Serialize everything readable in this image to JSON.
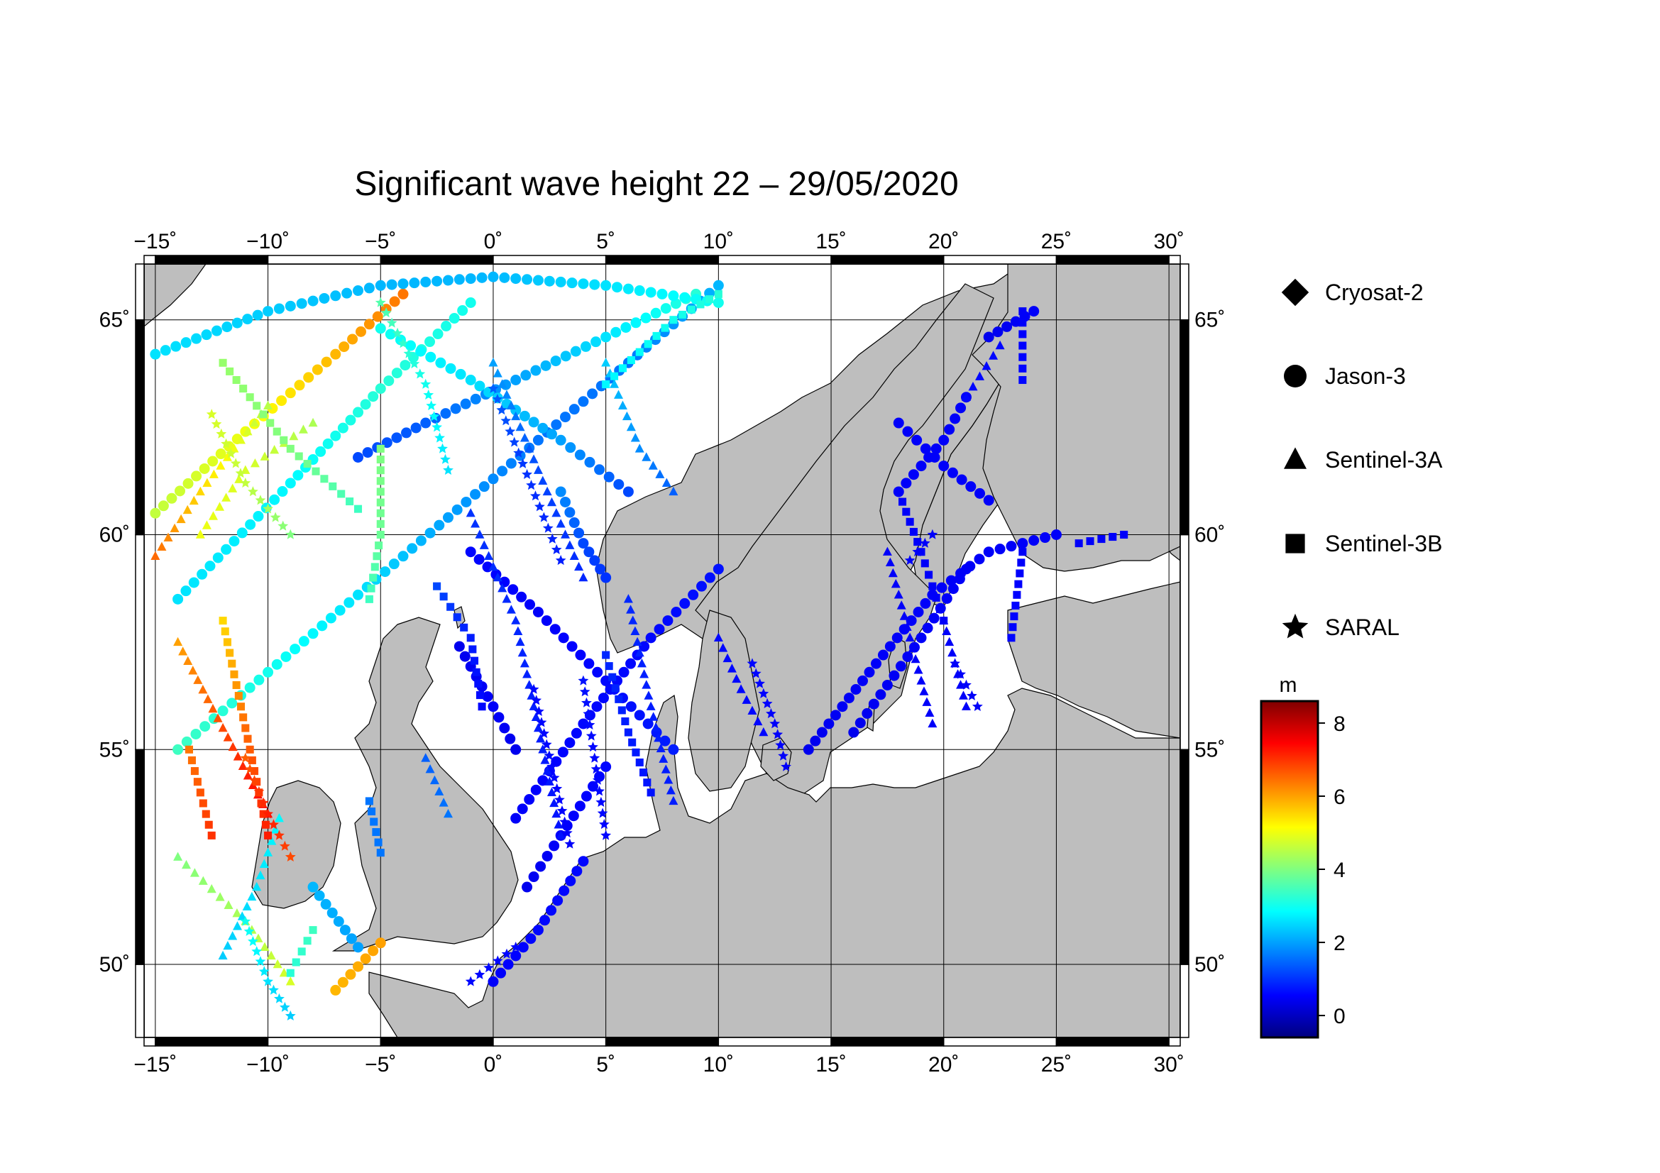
{
  "title": "Significant wave height 22 – 29/05/2020",
  "axes": {
    "lon_ticks": [
      {
        "value": -15,
        "label": "−15˚"
      },
      {
        "value": -10,
        "label": "−10˚"
      },
      {
        "value": -5,
        "label": "−5˚"
      },
      {
        "value": 0,
        "label": "0˚"
      },
      {
        "value": 5,
        "label": "5˚"
      },
      {
        "value": 10,
        "label": "10˚"
      },
      {
        "value": 15,
        "label": "15˚"
      },
      {
        "value": 20,
        "label": "20˚"
      },
      {
        "value": 25,
        "label": "25˚"
      },
      {
        "value": 30,
        "label": "30˚"
      }
    ],
    "lat_ticks": [
      {
        "value": 50,
        "label": "50˚"
      },
      {
        "value": 55,
        "label": "55˚"
      },
      {
        "value": 60,
        "label": "60˚"
      },
      {
        "value": 65,
        "label": "65˚"
      }
    ],
    "lon_range": [
      -15.5,
      30.5
    ],
    "lat_range": [
      48.3,
      66.3
    ]
  },
  "legend": [
    {
      "name": "Cryosat-2",
      "marker": "diamond"
    },
    {
      "name": "Jason-3",
      "marker": "circle"
    },
    {
      "name": "Sentinel-3A",
      "marker": "triangle"
    },
    {
      "name": "Sentinel-3B",
      "marker": "square"
    },
    {
      "name": "SARAL",
      "marker": "star"
    }
  ],
  "colorbar": {
    "unit": "m",
    "range": [
      -0.6,
      8.6
    ],
    "ticks": [
      {
        "value": 0,
        "label": "0"
      },
      {
        "value": 2,
        "label": "2"
      },
      {
        "value": 4,
        "label": "4"
      },
      {
        "value": 6,
        "label": "6"
      },
      {
        "value": 8,
        "label": "8"
      }
    ],
    "colors": [
      "#00007f",
      "#0000ff",
      "#0080ff",
      "#00ffff",
      "#80ff80",
      "#ffff00",
      "#ff8000",
      "#ff0000",
      "#7f0000"
    ]
  },
  "colors": {
    "land": "#bebebe",
    "sea": "#ffffff",
    "frame": "#000000"
  },
  "tracks": [
    {
      "satellite": "Jason-3",
      "marker": "circle",
      "points": [
        [
          -14,
          55
        ],
        [
          -10,
          56.8
        ],
        [
          -6,
          58.6
        ],
        [
          -2,
          60.4
        ],
        [
          2,
          62.2
        ],
        [
          6,
          64
        ],
        [
          10,
          65.8
        ]
      ],
      "swh": [
        3.4,
        3.0,
        2.6,
        2.0,
        1.6,
        1.6,
        2.2
      ]
    },
    {
      "satellite": "Jason-3",
      "marker": "circle",
      "points": [
        [
          -15,
          60.5
        ],
        [
          -11,
          62.4
        ],
        [
          -7,
          64.2
        ],
        [
          -4,
          65.6
        ]
      ],
      "swh": [
        4.6,
        5.0,
        5.8,
        6.4
      ]
    },
    {
      "satellite": "Jason-3",
      "marker": "circle",
      "points": [
        [
          -14,
          58.5
        ],
        [
          -9,
          61.2
        ],
        [
          -5,
          63.4
        ],
        [
          -1,
          65.4
        ]
      ],
      "swh": [
        2.6,
        2.8,
        3.2,
        3.0
      ]
    },
    {
      "satellite": "Jason-3",
      "marker": "circle",
      "points": [
        [
          -6,
          61.8
        ],
        [
          -3,
          62.6
        ],
        [
          1,
          63.6
        ],
        [
          5,
          64.6
        ],
        [
          9,
          65.6
        ]
      ],
      "swh": [
        1.2,
        1.4,
        2.0,
        2.6,
        3.2
      ]
    },
    {
      "satellite": "Jason-3",
      "marker": "circle",
      "points": [
        [
          -5,
          64.8
        ],
        [
          -1,
          63.6
        ],
        [
          3,
          62.2
        ],
        [
          6,
          61
        ]
      ],
      "swh": [
        3.0,
        2.6,
        2.0,
        1.2
      ]
    },
    {
      "satellite": "Jason-3",
      "marker": "circle",
      "points": [
        [
          -15,
          64.2
        ],
        [
          -10,
          65.2
        ],
        [
          -5,
          65.8
        ],
        [
          0,
          66
        ],
        [
          5,
          65.8
        ],
        [
          10,
          65.4
        ]
      ],
      "swh": [
        2.6,
        2.4,
        2.2,
        2.2,
        2.6,
        3.0
      ]
    },
    {
      "satellite": "Jason-3",
      "marker": "circle",
      "points": [
        [
          -1,
          59.6
        ],
        [
          2,
          58.2
        ],
        [
          5,
          56.6
        ],
        [
          8,
          55
        ]
      ],
      "swh": [
        0.6,
        0.5,
        0.6,
        0.8
      ]
    },
    {
      "satellite": "Jason-3",
      "marker": "circle",
      "points": [
        [
          -1.5,
          57.4
        ],
        [
          0,
          56
        ],
        [
          1,
          55
        ]
      ],
      "swh": [
        0.4,
        0.5,
        0.4
      ]
    },
    {
      "satellite": "Jason-3",
      "marker": "circle",
      "points": [
        [
          1,
          53.4
        ],
        [
          4,
          55.6
        ],
        [
          7,
          57.6
        ],
        [
          10,
          59.2
        ]
      ],
      "swh": [
        0.5,
        0.6,
        0.6,
        0.7
      ]
    },
    {
      "satellite": "Jason-3",
      "marker": "circle",
      "points": [
        [
          1.5,
          51.8
        ],
        [
          3,
          53
        ],
        [
          5,
          54.6
        ]
      ],
      "swh": [
        0.4,
        0.5,
        0.6
      ]
    },
    {
      "satellite": "Jason-3",
      "marker": "circle",
      "points": [
        [
          0,
          49.6
        ],
        [
          2,
          50.8
        ],
        [
          4,
          52.4
        ]
      ],
      "swh": [
        0.5,
        0.6,
        0.6
      ]
    },
    {
      "satellite": "Jason-3",
      "marker": "circle",
      "points": [
        [
          3,
          61
        ],
        [
          4,
          59.8
        ],
        [
          5,
          59
        ]
      ],
      "swh": [
        1.8,
        1.2,
        1.0
      ]
    },
    {
      "satellite": "Jason-3",
      "marker": "circle",
      "points": [
        [
          -8,
          51.8
        ],
        [
          -6,
          50.4
        ]
      ],
      "swh": [
        2.2,
        2.0
      ]
    },
    {
      "satellite": "Jason-3",
      "marker": "circle",
      "points": [
        [
          -7,
          49.4
        ],
        [
          -5,
          50.5
        ]
      ],
      "swh": [
        5.8,
        6.0
      ]
    },
    {
      "satellite": "Jason-3",
      "marker": "circle",
      "points": [
        [
          14,
          55
        ],
        [
          17,
          57
        ],
        [
          19.5,
          58.6
        ],
        [
          22,
          59.6
        ],
        [
          25,
          60
        ]
      ],
      "swh": [
        0.4,
        0.5,
        0.5,
        0.5,
        0.5
      ]
    },
    {
      "satellite": "Jason-3",
      "marker": "circle",
      "points": [
        [
          16,
          55.4
        ],
        [
          19,
          57.6
        ],
        [
          21,
          59.2
        ]
      ],
      "swh": [
        0.4,
        0.5,
        0.5
      ]
    },
    {
      "satellite": "Jason-3",
      "marker": "circle",
      "points": [
        [
          18,
          62.6
        ],
        [
          20,
          61.6
        ],
        [
          22,
          60.8
        ]
      ],
      "swh": [
        0.5,
        0.5,
        0.5
      ]
    },
    {
      "satellite": "Jason-3",
      "marker": "circle",
      "points": [
        [
          18,
          61
        ],
        [
          20,
          62.2
        ],
        [
          21,
          63.2
        ]
      ],
      "swh": [
        0.5,
        0.5,
        0.5
      ]
    },
    {
      "satellite": "Jason-3",
      "marker": "circle",
      "points": [
        [
          22,
          64.6
        ],
        [
          24,
          65.2
        ]
      ],
      "swh": [
        0.4,
        0.5
      ]
    },
    {
      "satellite": "Sentinel-3A",
      "marker": "triangle",
      "points": [
        [
          -15,
          59.5
        ],
        [
          -13,
          61
        ],
        [
          -10,
          63
        ]
      ],
      "swh": [
        6.5,
        5.5,
        4.5
      ]
    },
    {
      "satellite": "Sentinel-3A",
      "marker": "triangle",
      "points": [
        [
          -14,
          57.5
        ],
        [
          -12,
          55.5
        ],
        [
          -10,
          53.5
        ]
      ],
      "swh": [
        6.0,
        6.8,
        7.5
      ]
    },
    {
      "satellite": "Sentinel-3A",
      "marker": "triangle",
      "points": [
        [
          -14,
          52.5
        ],
        [
          -11,
          51
        ],
        [
          -9,
          49.6
        ]
      ],
      "swh": [
        4.0,
        4.4,
        4.8
      ]
    },
    {
      "satellite": "Sentinel-3A",
      "marker": "triangle",
      "points": [
        [
          -12,
          50.2
        ],
        [
          -10.5,
          51.8
        ],
        [
          -9.5,
          53.4
        ]
      ],
      "swh": [
        2.4,
        2.6,
        2.8
      ]
    },
    {
      "satellite": "Sentinel-3A",
      "marker": "triangle",
      "points": [
        [
          -13,
          60
        ],
        [
          -11,
          61.5
        ],
        [
          -8,
          62.6
        ]
      ],
      "swh": [
        5.0,
        4.8,
        4.4
      ]
    },
    {
      "satellite": "Sentinel-3A",
      "marker": "triangle",
      "points": [
        [
          0,
          64
        ],
        [
          2,
          61.5
        ],
        [
          4,
          59
        ]
      ],
      "swh": [
        2.0,
        1.2,
        0.9
      ]
    },
    {
      "satellite": "Sentinel-3A",
      "marker": "triangle",
      "points": [
        [
          -1,
          60.5
        ],
        [
          1,
          58
        ],
        [
          2,
          55.5
        ],
        [
          3,
          53
        ]
      ],
      "swh": [
        1.0,
        0.9,
        0.8,
        0.7
      ]
    },
    {
      "satellite": "Sentinel-3A",
      "marker": "triangle",
      "points": [
        [
          6,
          58.5
        ],
        [
          7,
          56
        ],
        [
          8,
          53.8
        ]
      ],
      "swh": [
        0.9,
        0.8,
        0.8
      ]
    },
    {
      "satellite": "Sentinel-3A",
      "marker": "triangle",
      "points": [
        [
          5,
          64
        ],
        [
          6.5,
          62
        ],
        [
          8,
          61
        ]
      ],
      "swh": [
        2.4,
        1.8,
        1.4
      ]
    },
    {
      "satellite": "Sentinel-3A",
      "marker": "triangle",
      "points": [
        [
          -3,
          54.8
        ],
        [
          -2,
          53.5
        ]
      ],
      "swh": [
        1.4,
        1.6
      ]
    },
    {
      "satellite": "Sentinel-3A",
      "marker": "triangle",
      "points": [
        [
          10,
          57.6
        ],
        [
          11,
          56.4
        ],
        [
          12,
          55.4
        ]
      ],
      "swh": [
        0.6,
        0.6,
        0.6
      ]
    },
    {
      "satellite": "Sentinel-3A",
      "marker": "triangle",
      "points": [
        [
          17.5,
          59.6
        ],
        [
          18.5,
          57.6
        ],
        [
          19.5,
          55.6
        ]
      ],
      "swh": [
        0.5,
        0.5,
        0.5
      ]
    },
    {
      "satellite": "Sentinel-3A",
      "marker": "triangle",
      "points": [
        [
          20,
          58
        ],
        [
          21,
          56
        ]
      ],
      "swh": [
        0.5,
        0.5
      ]
    },
    {
      "satellite": "Sentinel-3A",
      "marker": "triangle",
      "points": [
        [
          21,
          63.2
        ],
        [
          22.5,
          64.4
        ]
      ],
      "swh": [
        0.6,
        0.6
      ]
    },
    {
      "satellite": "Sentinel-3B",
      "marker": "square",
      "points": [
        [
          -12,
          58
        ],
        [
          -11,
          55.5
        ],
        [
          -10,
          53
        ]
      ],
      "swh": [
        5.5,
        6.5,
        7.2
      ]
    },
    {
      "satellite": "Sentinel-3B",
      "marker": "square",
      "points": [
        [
          -12,
          64
        ],
        [
          -9,
          62
        ],
        [
          -6,
          60.6
        ]
      ],
      "swh": [
        4.2,
        4.0,
        3.4
      ]
    },
    {
      "satellite": "Sentinel-3B",
      "marker": "square",
      "points": [
        [
          -5,
          62
        ],
        [
          -5,
          60
        ],
        [
          -5.5,
          58.5
        ]
      ],
      "swh": [
        4.0,
        3.8,
        3.4
      ]
    },
    {
      "satellite": "Sentinel-3B",
      "marker": "square",
      "points": [
        [
          5,
          63.5
        ],
        [
          8,
          65
        ],
        [
          10,
          65.6
        ]
      ],
      "swh": [
        2.8,
        3.0,
        3.2
      ]
    },
    {
      "satellite": "Sentinel-3B",
      "marker": "square",
      "points": [
        [
          -2.5,
          58.8
        ],
        [
          -1,
          57.6
        ],
        [
          -0.5,
          56
        ]
      ],
      "swh": [
        1.2,
        0.8,
        0.6
      ]
    },
    {
      "satellite": "Sentinel-3B",
      "marker": "square",
      "points": [
        [
          5,
          57.2
        ],
        [
          6,
          55.4
        ],
        [
          7,
          54
        ]
      ],
      "swh": [
        0.9,
        0.8,
        0.7
      ]
    },
    {
      "satellite": "Sentinel-3B",
      "marker": "square",
      "points": [
        [
          -5.5,
          53.8
        ],
        [
          -5,
          52.6
        ]
      ],
      "swh": [
        1.6,
        1.6
      ]
    },
    {
      "satellite": "Sentinel-3B",
      "marker": "square",
      "points": [
        [
          -9,
          49.8
        ],
        [
          -8,
          50.8
        ]
      ],
      "swh": [
        3.2,
        3.4
      ]
    },
    {
      "satellite": "Sentinel-3B",
      "marker": "square",
      "points": [
        [
          -13.5,
          55
        ],
        [
          -12.5,
          53
        ]
      ],
      "swh": [
        6.4,
        7.0
      ]
    },
    {
      "satellite": "Sentinel-3B",
      "marker": "square",
      "points": [
        [
          18,
          61
        ],
        [
          19,
          59.6
        ],
        [
          20,
          58
        ]
      ],
      "swh": [
        0.5,
        0.5,
        0.5
      ]
    },
    {
      "satellite": "Sentinel-3B",
      "marker": "square",
      "points": [
        [
          23,
          57.6
        ],
        [
          23.5,
          59.6
        ]
      ],
      "swh": [
        0.6,
        0.5
      ]
    },
    {
      "satellite": "Sentinel-3B",
      "marker": "square",
      "points": [
        [
          23.5,
          63.6
        ],
        [
          23.5,
          65.2
        ]
      ],
      "swh": [
        0.6,
        0.5
      ]
    },
    {
      "satellite": "Sentinel-3B",
      "marker": "square",
      "points": [
        [
          26,
          59.8
        ],
        [
          28,
          60
        ]
      ],
      "swh": [
        0.5,
        0.5
      ]
    },
    {
      "satellite": "SARAL",
      "marker": "star",
      "points": [
        [
          -5,
          65.4
        ],
        [
          -3,
          63.5
        ],
        [
          -2,
          61.5
        ]
      ],
      "swh": [
        3.6,
        3.0,
        2.6
      ]
    },
    {
      "satellite": "SARAL",
      "marker": "star",
      "points": [
        [
          0,
          63.4
        ],
        [
          1.5,
          61.4
        ],
        [
          3,
          59.4
        ]
      ],
      "swh": [
        1.4,
        1.0,
        0.8
      ]
    },
    {
      "satellite": "SARAL",
      "marker": "star",
      "points": [
        [
          1.8,
          56.4
        ],
        [
          2.6,
          54.6
        ],
        [
          3.4,
          52.8
        ]
      ],
      "swh": [
        0.6,
        0.6,
        0.5
      ]
    },
    {
      "satellite": "SARAL",
      "marker": "star",
      "points": [
        [
          4,
          56.6
        ],
        [
          4.5,
          54.8
        ],
        [
          5,
          53
        ]
      ],
      "swh": [
        0.7,
        0.6,
        0.6
      ]
    },
    {
      "satellite": "SARAL",
      "marker": "star",
      "points": [
        [
          -11,
          54.8
        ],
        [
          -10,
          53.5
        ],
        [
          -9,
          52.5
        ]
      ],
      "swh": [
        6.6,
        7.2,
        6.8
      ]
    },
    {
      "satellite": "SARAL",
      "marker": "star",
      "points": [
        [
          -11,
          51
        ],
        [
          -10,
          49.6
        ],
        [
          -9,
          48.8
        ]
      ],
      "swh": [
        3.0,
        2.6,
        2.4
      ]
    },
    {
      "satellite": "SARAL",
      "marker": "star",
      "points": [
        [
          -12.5,
          62.8
        ],
        [
          -11,
          61.2
        ],
        [
          -9,
          60
        ]
      ],
      "swh": [
        4.8,
        4.6,
        4.0
      ]
    },
    {
      "satellite": "SARAL",
      "marker": "star",
      "points": [
        [
          11.5,
          57
        ],
        [
          12.5,
          55.6
        ],
        [
          13,
          54.6
        ]
      ],
      "swh": [
        0.6,
        0.5,
        0.5
      ]
    },
    {
      "satellite": "SARAL",
      "marker": "star",
      "points": [
        [
          20.5,
          57
        ],
        [
          21.5,
          56
        ]
      ],
      "swh": [
        0.5,
        0.5
      ]
    },
    {
      "satellite": "SARAL",
      "marker": "star",
      "points": [
        [
          18.5,
          59.4
        ],
        [
          19.5,
          60
        ]
      ],
      "swh": [
        0.5,
        0.5
      ]
    },
    {
      "satellite": "SARAL",
      "marker": "star",
      "points": [
        [
          -1,
          49.6
        ],
        [
          1,
          50.4
        ]
      ],
      "swh": [
        0.6,
        0.6
      ]
    }
  ]
}
